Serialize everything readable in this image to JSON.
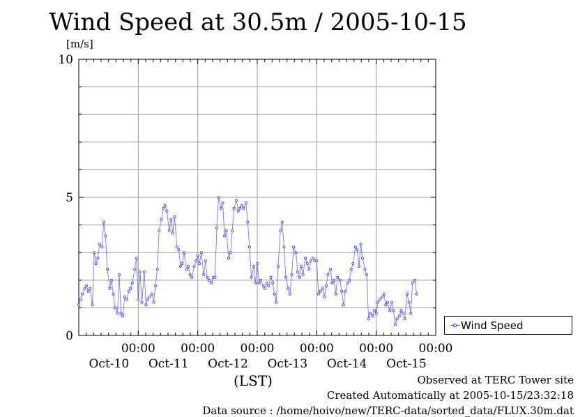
{
  "page": {
    "observed": "Observed at TERC Tower site",
    "created": "Created Automatically at 2005-10-15/23:32:18",
    "source": "Data source : /home/hoivo/new/TERC-data/sorted_data/FLUX.30m.dat"
  },
  "chart_data": {
    "type": "line",
    "title": "Wind Speed at 30.5m / 2005-10-15",
    "ylabel": "[m/s]",
    "xlabel": "(LST)",
    "ylim": [
      0,
      10
    ],
    "yticks": [
      "0",
      "5",
      "10"
    ],
    "xlim": [
      0,
      6
    ],
    "xticks": [
      {
        "x": 1,
        "label": "00:00",
        "day": "Oct-10"
      },
      {
        "x": 2,
        "label": "00:00",
        "day": "Oct-11"
      },
      {
        "x": 3,
        "label": "00:00",
        "day": "Oct-12"
      },
      {
        "x": 4,
        "label": "00:00",
        "day": "Oct-13"
      },
      {
        "x": 5,
        "label": "00:00",
        "day": "Oct-14"
      },
      {
        "x": 6,
        "label": "00:00",
        "day": "Oct-15"
      }
    ],
    "grid": true,
    "legend_position": "bottom-right",
    "colors": {
      "series": "#3333ff"
    },
    "series": [
      {
        "name": "Wind Speed",
        "x": [
          0.0,
          0.03,
          0.06,
          0.1,
          0.13,
          0.16,
          0.19,
          0.23,
          0.26,
          0.29,
          0.32,
          0.35,
          0.39,
          0.42,
          0.45,
          0.48,
          0.52,
          0.55,
          0.58,
          0.61,
          0.65,
          0.68,
          0.71,
          0.74,
          0.77,
          0.81,
          0.84,
          0.87,
          0.9,
          0.94,
          0.97,
          1.0,
          1.03,
          1.06,
          1.1,
          1.13,
          1.16,
          1.19,
          1.23,
          1.26,
          1.29,
          1.32,
          1.35,
          1.39,
          1.42,
          1.45,
          1.48,
          1.52,
          1.55,
          1.58,
          1.61,
          1.65,
          1.68,
          1.71,
          1.74,
          1.77,
          1.81,
          1.84,
          1.87,
          1.9,
          1.94,
          1.97,
          2.0,
          2.03,
          2.06,
          2.1,
          2.13,
          2.16,
          2.19,
          2.23,
          2.26,
          2.29,
          2.32,
          2.35,
          2.39,
          2.42,
          2.45,
          2.48,
          2.52,
          2.55,
          2.58,
          2.61,
          2.65,
          2.68,
          2.71,
          2.74,
          2.77,
          2.81,
          2.84,
          2.87,
          2.9,
          2.94,
          2.97,
          3.0,
          3.03,
          3.06,
          3.1,
          3.13,
          3.16,
          3.19,
          3.23,
          3.26,
          3.29,
          3.32,
          3.35,
          3.39,
          3.42,
          3.45,
          3.48,
          3.52,
          3.55,
          3.58,
          3.61,
          3.65,
          3.68,
          3.71,
          3.74,
          3.77,
          3.81,
          3.84,
          3.87,
          3.9,
          3.94,
          3.97,
          4.0,
          4.03,
          4.06,
          4.1,
          4.13,
          4.16,
          4.19,
          4.23,
          4.26,
          4.29,
          4.32,
          4.35,
          4.39,
          4.42,
          4.45,
          4.48,
          4.52,
          4.55,
          4.58,
          4.61,
          4.65,
          4.68,
          4.71,
          4.74,
          4.77,
          4.81,
          4.84,
          4.87,
          4.9,
          4.94,
          4.97,
          5.0,
          5.03,
          5.06,
          5.1,
          5.13,
          5.16,
          5.19,
          5.23,
          5.26,
          5.29,
          5.32,
          5.35,
          5.39,
          5.42,
          5.45,
          5.48,
          5.52,
          5.55,
          5.58,
          5.61,
          5.65,
          5.68
        ],
        "values": [
          1.1,
          1.3,
          1.5,
          1.7,
          1.8,
          1.6,
          1.7,
          1.1,
          3.0,
          2.6,
          2.8,
          3.3,
          3.2,
          4.1,
          3.6,
          2.4,
          1.7,
          2.0,
          1.5,
          1.0,
          0.8,
          2.2,
          0.8,
          0.7,
          1.4,
          1.3,
          1.6,
          1.7,
          1.9,
          2.4,
          2.8,
          1.3,
          2.3,
          1.2,
          2.3,
          1.1,
          1.3,
          1.4,
          1.5,
          1.2,
          1.8,
          2.4,
          3.8,
          4.2,
          4.6,
          4.7,
          4.5,
          3.8,
          4.2,
          3.7,
          4.3,
          3.2,
          3.1,
          2.5,
          2.6,
          3.0,
          2.4,
          2.5,
          2.2,
          2.1,
          2.5,
          2.7,
          2.9,
          2.6,
          3.0,
          2.2,
          2.7,
          2.1,
          2.0,
          1.9,
          2.1,
          2.1,
          3.9,
          5.0,
          4.6,
          4.8,
          3.6,
          3.8,
          2.8,
          3.0,
          3.8,
          4.6,
          4.9,
          4.5,
          4.6,
          4.7,
          4.6,
          4.8,
          4.1,
          3.2,
          2.1,
          2.5,
          1.9,
          2.6,
          1.9,
          2.0,
          1.8,
          1.7,
          1.9,
          1.8,
          2.1,
          1.9,
          1.5,
          1.2,
          2.5,
          3.8,
          4.1,
          3.2,
          2.1,
          1.7,
          1.5,
          2.2,
          3.2,
          3.0,
          2.3,
          2.1,
          2.5,
          2.2,
          2.8,
          2.6,
          2.4,
          2.7,
          2.8,
          2.7,
          2.7,
          1.5,
          1.6,
          1.7,
          1.4,
          1.8,
          2.2,
          2.4,
          1.9,
          2.0,
          1.5,
          2.1,
          2.0,
          1.6,
          1.1,
          1.6,
          1.9,
          2.0,
          2.4,
          2.6,
          3.2,
          3.1,
          2.5,
          3.3,
          2.8,
          2.4,
          2.2,
          0.6,
          0.8,
          0.7,
          0.9,
          0.8,
          1.2,
          1.3,
          1.4,
          1.5,
          1.1,
          1.2,
          0.9,
          1.2,
          0.9,
          0.4,
          0.6,
          0.7,
          0.9,
          0.8,
          0.6,
          1.5,
          1.2,
          0.8,
          1.9,
          2.0,
          1.5
        ]
      }
    ]
  }
}
